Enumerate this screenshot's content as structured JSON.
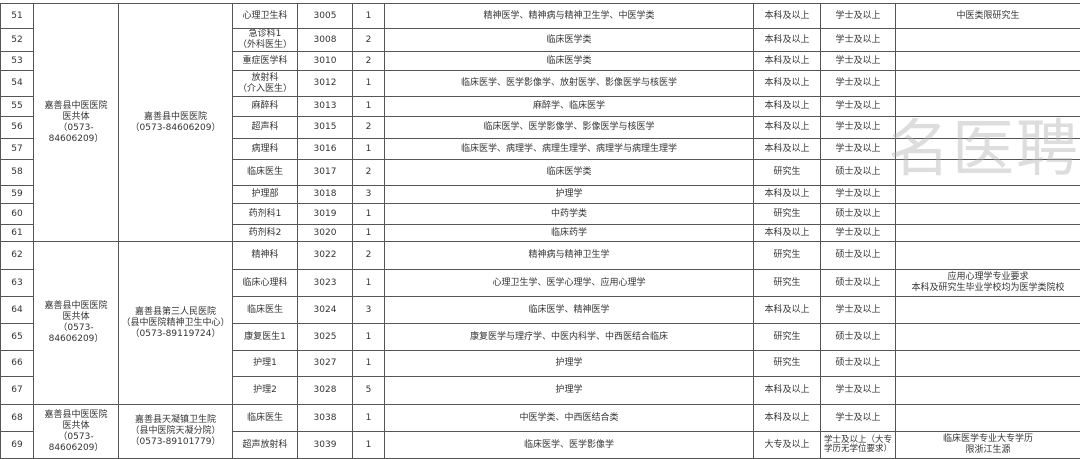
{
  "groups": [
    {
      "unit": "嘉善县中医医院\n医共体\n（0573-84606209）",
      "hospital": "嘉善县中医医院\n（0573-84606209）"
    },
    {
      "unit": "嘉善县中医医院\n医共体\n（0573-84606209）",
      "hospital": "嘉善县第三人民医院\n（县中医院精神卫生中心）\n（0573-89119724）"
    },
    {
      "unit": "嘉善县中医医院\n医共体\n（0573-84606209）",
      "hospital": "嘉善县天凝镇卫生院\n（县中医院天凝分院）\n（0573-89101779）"
    }
  ],
  "rows": [
    {
      "no": "51",
      "post": "心理卫生科",
      "code": "3005",
      "count": "1",
      "major": "精神医学、精神病与精神卫生学、中医学类",
      "edu": "本科及以上",
      "degree": "学士及以上",
      "note": "中医类限研究生"
    },
    {
      "no": "52",
      "post": "急诊科1\n（外科医生）",
      "code": "3008",
      "count": "2",
      "major": "临床医学类",
      "edu": "本科及以上",
      "degree": "学士及以上",
      "note": ""
    },
    {
      "no": "53",
      "post": "重症医学科",
      "code": "3010",
      "count": "2",
      "major": "临床医学类",
      "edu": "本科及以上",
      "degree": "学士及以上",
      "note": ""
    },
    {
      "no": "54",
      "post": "放射科\n（介入医生）",
      "code": "3012",
      "count": "1",
      "major": "临床医学、医学影像学、放射医学、影像医学与核医学",
      "edu": "本科及以上",
      "degree": "学士及以上",
      "note": ""
    },
    {
      "no": "55",
      "post": "麻醉科",
      "code": "3013",
      "count": "1",
      "major": "麻醉学、临床医学",
      "edu": "本科及以上",
      "degree": "学士及以上",
      "note": ""
    },
    {
      "no": "56",
      "post": "超声科",
      "code": "3015",
      "count": "2",
      "major": "临床医学、医学影像学、影像医学与核医学",
      "edu": "本科及以上",
      "degree": "学士及以上",
      "note": ""
    },
    {
      "no": "57",
      "post": "病理科",
      "code": "3016",
      "count": "1",
      "major": "临床医学、病理学、病理生理学、病理学与病理生理学",
      "edu": "本科及以上",
      "degree": "学士及以上",
      "note": ""
    },
    {
      "no": "58",
      "post": "临床医生",
      "code": "3017",
      "count": "2",
      "major": "临床医学类",
      "edu": "研究生",
      "degree": "硕士及以上",
      "note": ""
    },
    {
      "no": "59",
      "post": "护理部",
      "code": "3018",
      "count": "3",
      "major": "护理学",
      "edu": "本科及以上",
      "degree": "学士及以上",
      "note": ""
    },
    {
      "no": "60",
      "post": "药剂科1",
      "code": "3019",
      "count": "1",
      "major": "中药学类",
      "edu": "研究生",
      "degree": "硕士及以上",
      "note": ""
    },
    {
      "no": "61",
      "post": "药剂科2",
      "code": "3020",
      "count": "1",
      "major": "临床药学",
      "edu": "本科及以上",
      "degree": "学士及以上",
      "note": ""
    },
    {
      "no": "62",
      "post": "精神科",
      "code": "3022",
      "count": "2",
      "major": "精神病与精神卫生学",
      "edu": "研究生",
      "degree": "硕士及以上",
      "note": ""
    },
    {
      "no": "63",
      "post": "临床心理科",
      "code": "3023",
      "count": "1",
      "major": "心理卫生学、医学心理学、应用心理学",
      "edu": "研究生",
      "degree": "硕士及以上",
      "note": "应用心理学专业要求\n本科及研究生毕业学校均为医学类院校"
    },
    {
      "no": "64",
      "post": "临床医生",
      "code": "3024",
      "count": "3",
      "major": "临床医学、精神医学",
      "edu": "本科及以上",
      "degree": "学士及以上",
      "note": ""
    },
    {
      "no": "65",
      "post": "康复医生1",
      "code": "3025",
      "count": "1",
      "major": "康复医学与理疗学、中医内科学、中西医结合临床",
      "edu": "研究生",
      "degree": "硕士及以上",
      "note": ""
    },
    {
      "no": "66",
      "post": "护理1",
      "code": "3027",
      "count": "1",
      "major": "护理学",
      "edu": "研究生",
      "degree": "硕士及以上",
      "note": ""
    },
    {
      "no": "67",
      "post": "护理2",
      "code": "3028",
      "count": "5",
      "major": "护理学",
      "edu": "本科及以上",
      "degree": "学士及以上",
      "note": ""
    },
    {
      "no": "68",
      "post": "临床医生",
      "code": "3038",
      "count": "1",
      "major": "中医学类、中西医结合类",
      "edu": "本科及以上",
      "degree": "学士及以上",
      "note": ""
    },
    {
      "no": "69",
      "post": "超声放射科",
      "code": "3039",
      "count": "1",
      "major": "临床医学、医学影像学",
      "edu": "大专及以上",
      "degree": "学士及以上（大专学历无学位要求）",
      "note": "临床医学专业大专学历\n限浙江生源"
    }
  ],
  "watermark": "名医聘"
}
